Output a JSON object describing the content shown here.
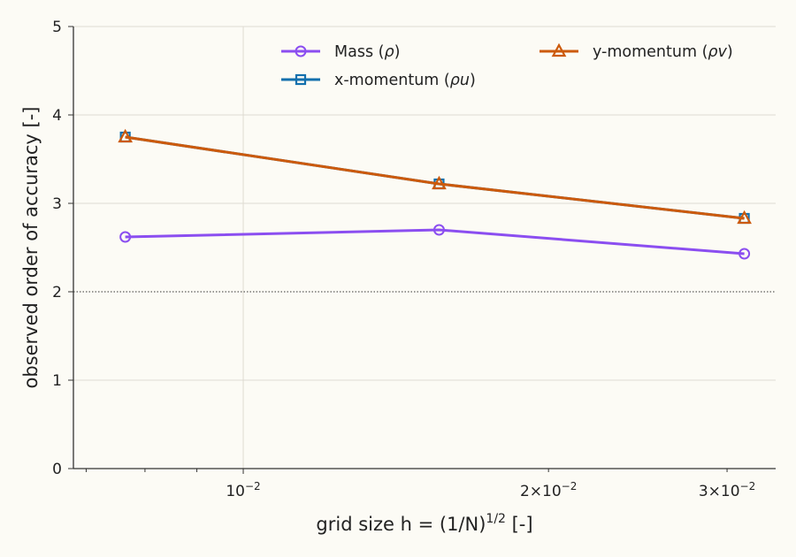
{
  "chart_data": {
    "type": "line",
    "xlabel": "grid size  h = (1/N)",
    "xlabel_sup": "1/2",
    "xlabel_suffix": " [-]",
    "ylabel": "observed order of accuracy [-]",
    "x_scale": "log",
    "xlim": [
      0.0068,
      0.0335
    ],
    "ylim": [
      0,
      5
    ],
    "y_ticks": [
      0,
      1,
      2,
      3,
      4,
      5
    ],
    "x_major_ticks": [
      {
        "value": 0.01,
        "base": "10",
        "exp": "−2"
      }
    ],
    "x_minor_ticks": [
      {
        "value": 0.02,
        "mant": "2",
        "base": "10",
        "exp": "−2"
      },
      {
        "value": 0.03,
        "mant": "3",
        "base": "10",
        "exp": "−2"
      }
    ],
    "x_minor_unlabeled": [
      0.007,
      0.008,
      0.009
    ],
    "grid": true,
    "reference_line": {
      "y": 2,
      "style": "dotted",
      "color": "#333333"
    },
    "legend": {
      "placement": "top",
      "columns": 2
    },
    "x": [
      0.00765,
      0.0156,
      0.0312
    ],
    "series": [
      {
        "name": "Mass (",
        "sym": "ρ",
        "tail": ")",
        "color": "#8b4ef0",
        "marker": "circle",
        "values": [
          2.62,
          2.7,
          2.43
        ]
      },
      {
        "name": "x-momentum (",
        "sym": "ρu",
        "tail": ")",
        "color": "#1370ad",
        "marker": "square",
        "values": [
          3.75,
          3.22,
          2.83
        ]
      },
      {
        "name": "y-momentum (",
        "sym": "ρv",
        "tail": ")",
        "color": "#cc5a0c",
        "marker": "triangle",
        "values": [
          3.75,
          3.22,
          2.83
        ]
      }
    ]
  }
}
